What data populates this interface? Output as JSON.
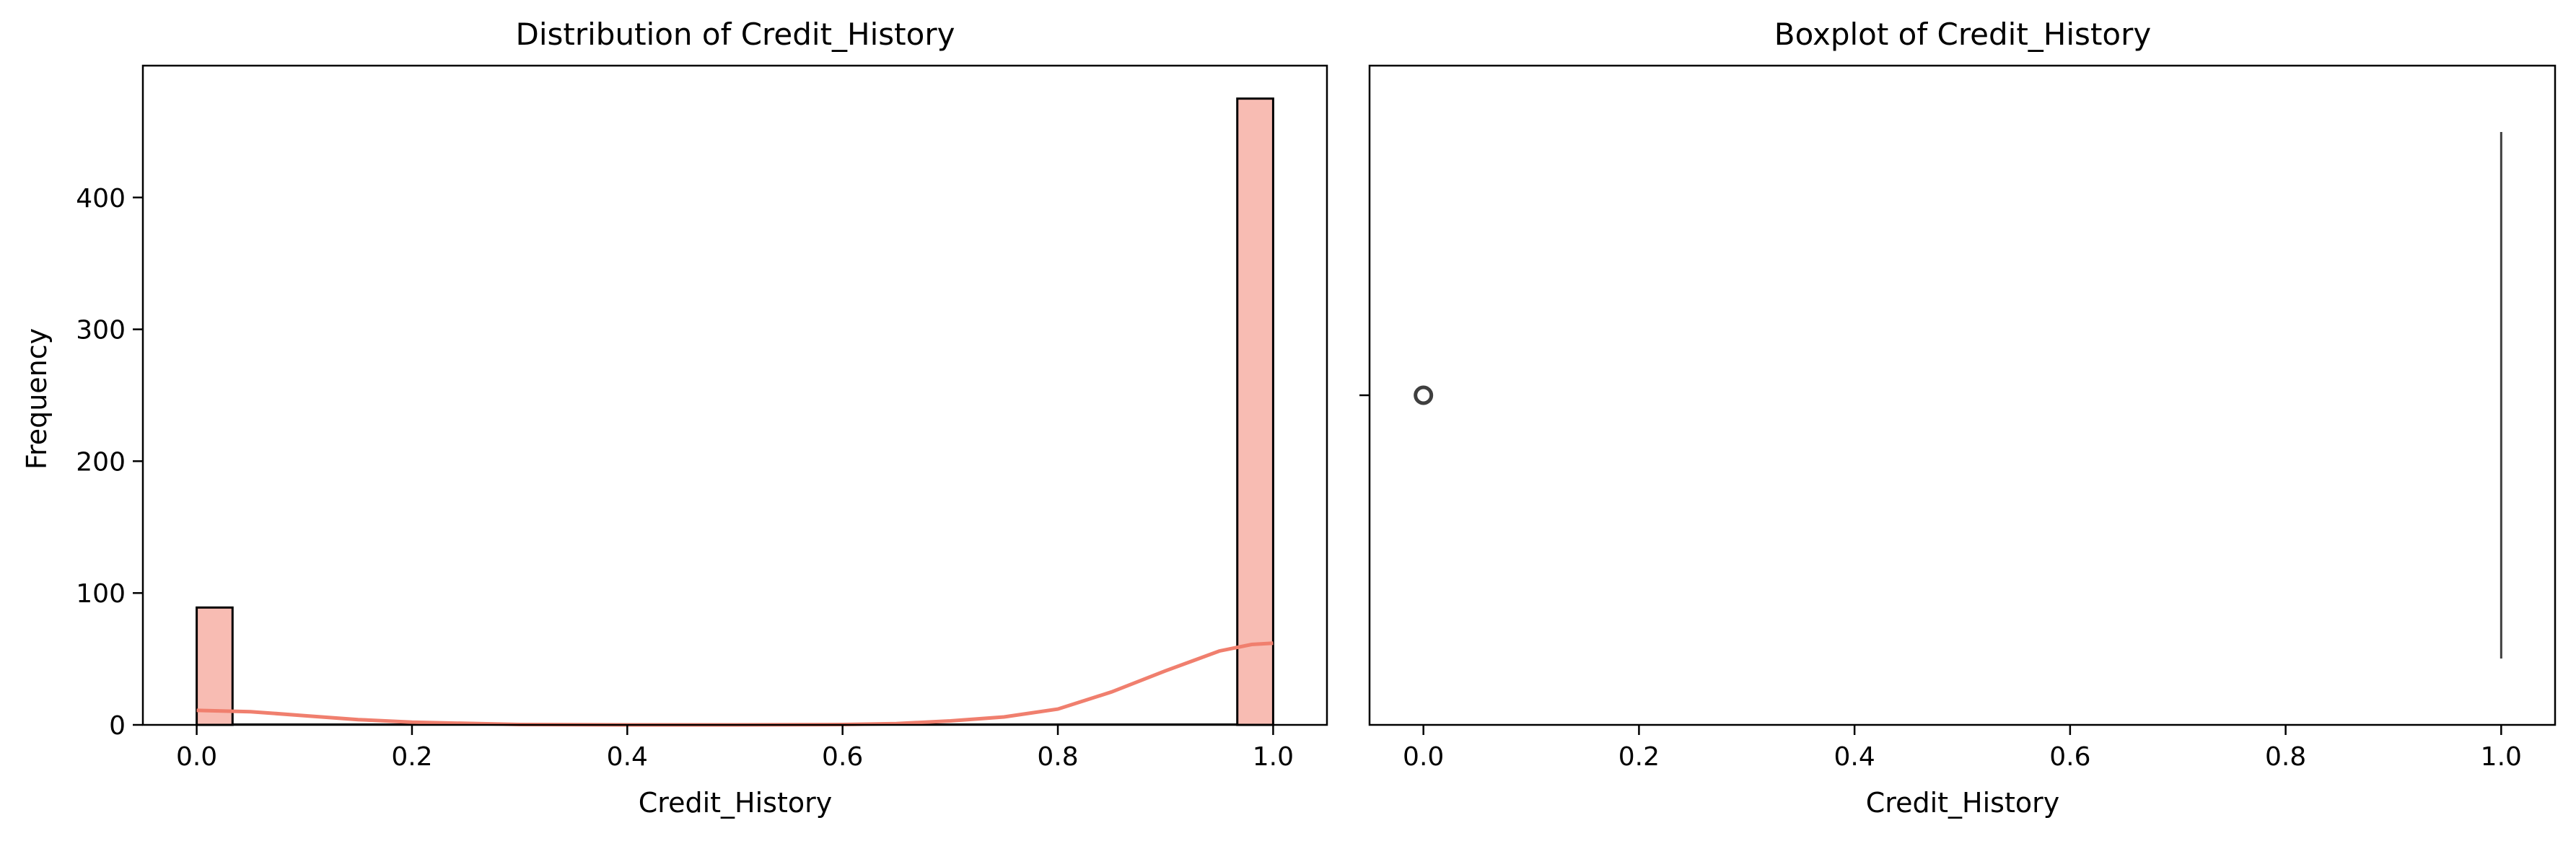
{
  "colors": {
    "hist_fill": "#f8bcb3",
    "kde_line": "#f07f6e",
    "edge": "#000000",
    "box_line": "#3f3f3f"
  },
  "chart_data": [
    {
      "type": "bar",
      "subtype": "histogram",
      "title": "Distribution of Credit_History",
      "xlabel": "Credit_History",
      "ylabel": "Frequency",
      "xlim": [
        -0.05,
        1.05
      ],
      "ylim": [
        0,
        500
      ],
      "xticks": [
        0.0,
        0.2,
        0.4,
        0.6,
        0.8,
        1.0
      ],
      "xtick_labels": [
        "0.0",
        "0.2",
        "0.4",
        "0.6",
        "0.8",
        "1.0"
      ],
      "yticks": [
        0,
        100,
        200,
        300,
        400
      ],
      "ytick_labels": [
        "0",
        "100",
        "200",
        "300",
        "400"
      ],
      "bins": [
        {
          "x0": 0.0,
          "x1": 0.0333,
          "value": 89
        },
        {
          "x0": 0.9667,
          "x1": 1.0,
          "value": 475
        }
      ],
      "kde": {
        "x": [
          0.0,
          0.05,
          0.1,
          0.15,
          0.2,
          0.3,
          0.4,
          0.5,
          0.6,
          0.65,
          0.7,
          0.75,
          0.8,
          0.85,
          0.9,
          0.95,
          0.98,
          1.0
        ],
        "y": [
          11,
          10,
          7,
          4,
          2,
          0.3,
          0,
          0,
          0.3,
          1,
          3,
          6,
          12,
          25,
          41,
          56,
          61,
          62
        ]
      },
      "grid": false,
      "legend": false
    },
    {
      "type": "boxplot",
      "title": "Boxplot of Credit_History",
      "xlabel": "Credit_History",
      "xlim": [
        -0.05,
        1.05
      ],
      "xticks": [
        0.0,
        0.2,
        0.4,
        0.6,
        0.8,
        1.0
      ],
      "xtick_labels": [
        "0.0",
        "0.2",
        "0.4",
        "0.6",
        "0.8",
        "1.0"
      ],
      "box": {
        "q1": 1.0,
        "median": 1.0,
        "q3": 1.0,
        "whisker_low": 1.0,
        "whisker_high": 1.0
      },
      "outliers": [
        0.0
      ],
      "grid": false,
      "legend": false
    }
  ]
}
